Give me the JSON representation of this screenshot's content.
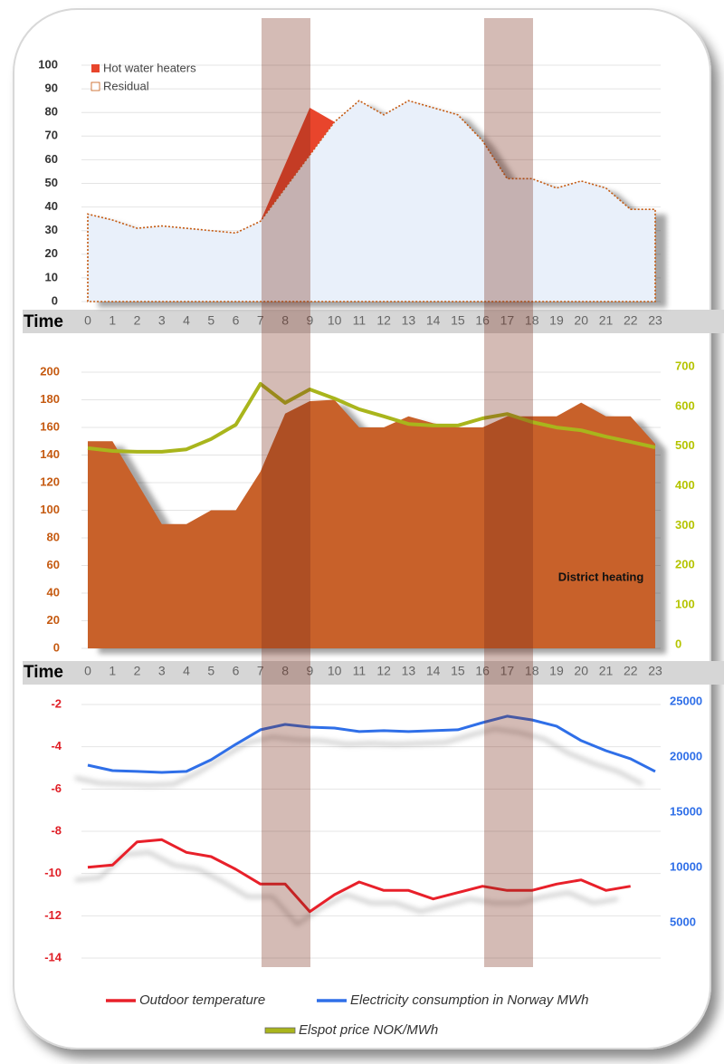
{
  "chart_data": [
    {
      "type": "area",
      "stacked": true,
      "grid": true,
      "x_label": "Time",
      "categories": [
        "0",
        "1",
        "2",
        "3",
        "4",
        "5",
        "6",
        "7",
        "8",
        "9",
        "10",
        "11",
        "12",
        "13",
        "14",
        "15",
        "16",
        "17",
        "18",
        "19",
        "20",
        "21",
        "22",
        "23"
      ],
      "ylim": [
        0,
        100
      ],
      "yticks": [
        0,
        10,
        20,
        30,
        40,
        50,
        60,
        70,
        80,
        90,
        100
      ],
      "series": [
        {
          "name": "Hot water heaters",
          "color": "#e8452c",
          "values": [
            0,
            0,
            0,
            0,
            0,
            0,
            0,
            0,
            10,
            20,
            0,
            0,
            0,
            0,
            0,
            0,
            0,
            0,
            0,
            0,
            0,
            0,
            0,
            0
          ]
        },
        {
          "name": "Residual",
          "color": "#c55a11",
          "values": [
            37,
            34.5,
            31,
            32,
            31,
            30,
            29,
            34,
            48,
            62,
            76,
            85,
            79,
            85,
            82,
            79,
            68,
            52,
            52,
            48,
            51,
            48,
            39,
            39
          ]
        }
      ]
    },
    {
      "type": "area",
      "grid": true,
      "x_label": "Time",
      "categories": [
        "0",
        "1",
        "2",
        "3",
        "4",
        "5",
        "6",
        "7",
        "8",
        "9",
        "10",
        "11",
        "12",
        "13",
        "14",
        "15",
        "16",
        "17",
        "18",
        "19",
        "20",
        "21",
        "22",
        "23"
      ],
      "ylim": [
        0,
        200
      ],
      "yticks": [
        0,
        20,
        40,
        60,
        80,
        100,
        120,
        140,
        160,
        180,
        200
      ],
      "y2lim": [
        0,
        700
      ],
      "y2ticks": [
        0,
        100,
        200,
        300,
        400,
        500,
        600,
        700
      ],
      "series": [
        {
          "name": "District heating",
          "color": "#c8612a",
          "values": [
            150,
            150,
            120,
            90,
            90,
            100,
            100,
            128,
            170,
            179,
            180,
            160,
            160,
            168,
            163,
            160,
            160,
            168,
            168,
            168,
            178,
            168,
            168,
            148
          ]
        },
        {
          "name": "Elspot price NOK/MWh",
          "color": "#a9b51c",
          "axis": "y2",
          "values": [
            495,
            488,
            486,
            486,
            492,
            518,
            554,
            657,
            609,
            643,
            620,
            593,
            575,
            556,
            552,
            552,
            570,
            581,
            561,
            547,
            540,
            524,
            511,
            497
          ]
        }
      ]
    },
    {
      "type": "line",
      "grid": true,
      "ylim": [
        -14,
        -2
      ],
      "yticks": [
        -14,
        -12,
        -10,
        -8,
        -6,
        -4,
        -2
      ],
      "y2lim": [
        1800,
        24750
      ],
      "y2ticks": [
        5000,
        10000,
        15000,
        20000,
        25000
      ],
      "series": [
        {
          "name": "Outdoor temperature",
          "color": "#e8202a",
          "values": [
            -9.7,
            -9.6,
            -8.5,
            -8.4,
            -9.0,
            -9.2,
            -9.8,
            -10.5,
            -10.5,
            -11.8,
            -11.0,
            -10.4,
            -10.8,
            -10.8,
            -11.2,
            -10.9,
            -10.6,
            -10.8,
            -10.8,
            -10.5,
            -10.3,
            -10.8,
            -10.6,
            null
          ]
        },
        {
          "name": "Electricity consumption in Norway MWh",
          "color": "#2f6fe8",
          "axis": "y2",
          "values": [
            19260,
            18770,
            18690,
            18600,
            18690,
            19750,
            21150,
            22460,
            22950,
            22700,
            22620,
            22300,
            22380,
            22300,
            22380,
            22460,
            23110,
            23690,
            23360,
            22790,
            21480,
            20570,
            19840,
            18690
          ]
        }
      ]
    }
  ]
}
